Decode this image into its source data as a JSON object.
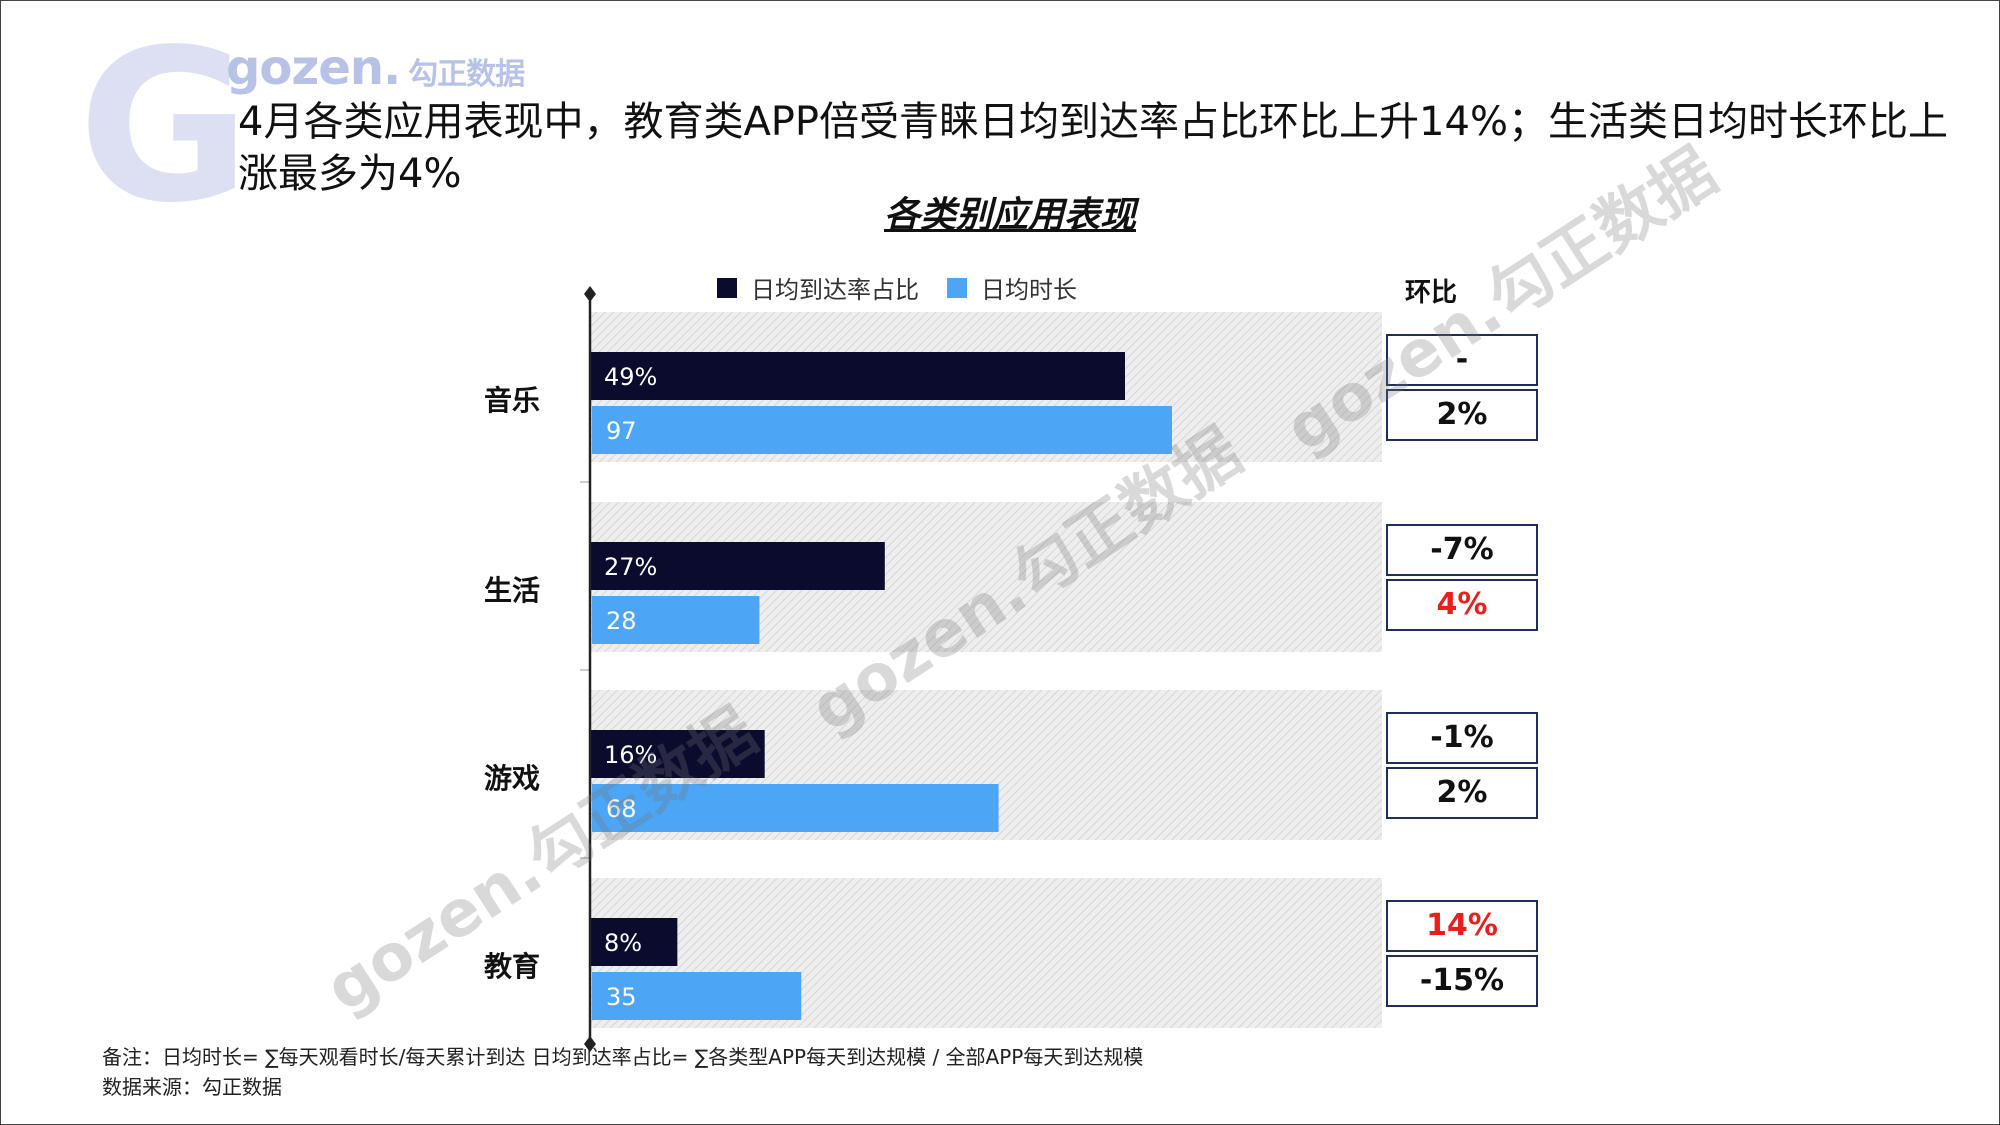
{
  "logo": {
    "brand": "gozen.",
    "cn": "勾正数据",
    "letter": "G"
  },
  "headline": "4月各类应用表现中，教育类APP倍受青睐日均到达率占比环比上升14%；生活类日均时长环比上涨最多为4%",
  "chart_title": "各类别应用表现",
  "mom_header": "环比",
  "notes": {
    "formula": "备注：日均时长= ∑每天观看时长/每天累计到达 日均到达率占比= ∑各类型APP每天到达规模 / 全部APP每天到达规模",
    "source": "数据来源：勾正数据"
  },
  "watermark_text": "gozen.勾正数据",
  "colors": {
    "reach": "#0b0b2e",
    "duration": "#4da6f5",
    "highlight": "#e8201c",
    "box_border": "#1f2d5c"
  },
  "chart_data": {
    "type": "bar",
    "orientation": "horizontal",
    "categories": [
      "音乐",
      "生活",
      "游戏",
      "教育"
    ],
    "series": [
      {
        "name": "日均到达率占比",
        "values": [
          49,
          27,
          16,
          8
        ],
        "labels": [
          "49%",
          "27%",
          "16%",
          "8%"
        ],
        "mom": [
          "-",
          "-7%",
          "-1%",
          "14%"
        ],
        "mom_highlight": [
          false,
          false,
          false,
          true
        ]
      },
      {
        "name": "日均时长",
        "values": [
          97,
          28,
          68,
          35
        ],
        "labels": [
          "97",
          "28",
          "68",
          "35"
        ],
        "mom": [
          "2%",
          "4%",
          "2%",
          "-15%"
        ],
        "mom_highlight": [
          false,
          true,
          false,
          false
        ]
      }
    ],
    "legend": "top"
  }
}
